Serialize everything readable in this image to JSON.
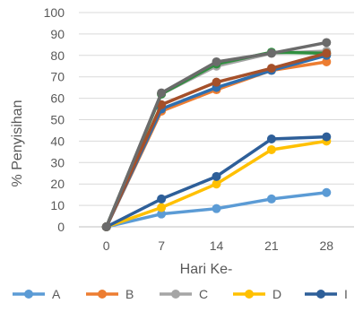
{
  "chart_data": {
    "type": "line",
    "title": "",
    "xlabel": "Hari Ke-",
    "ylabel": "% Penyisihan",
    "categories": [
      "0",
      "7",
      "14",
      "21",
      "28"
    ],
    "ylim": [
      0,
      100
    ],
    "yticks": [
      0,
      10,
      20,
      30,
      40,
      50,
      60,
      70,
      80,
      90,
      100
    ],
    "grid": true,
    "legend_position": "bottom",
    "series": [
      {
        "name": "A",
        "color": "#5b9bd5",
        "values": [
          0,
          6,
          8.5,
          13,
          16
        ]
      },
      {
        "name": "B",
        "color": "#ed7d31",
        "values": [
          0,
          54,
          64,
          73,
          77
        ]
      },
      {
        "name": "C",
        "color": "#a5a5a5",
        "values": [
          0,
          62,
          75,
          81,
          82
        ]
      },
      {
        "name": "D",
        "color": "#ffc000",
        "values": [
          0,
          9,
          20,
          36,
          40
        ]
      },
      {
        "name": "I",
        "color": "#2e5f99",
        "values": [
          0,
          13,
          23.5,
          41,
          42
        ]
      },
      {
        "name": "",
        "color": "#2e6fb0",
        "values": [
          0,
          55,
          65,
          73,
          80
        ]
      },
      {
        "name": "",
        "color": "#2f8f3f",
        "values": [
          0,
          62,
          76,
          81.5,
          81
        ]
      },
      {
        "name": "",
        "color": "#a5502a",
        "values": [
          0,
          57,
          67.5,
          74,
          81
        ]
      },
      {
        "name": "",
        "color": "#6b6b6b",
        "values": [
          0,
          62.5,
          77,
          81,
          86
        ]
      }
    ]
  }
}
